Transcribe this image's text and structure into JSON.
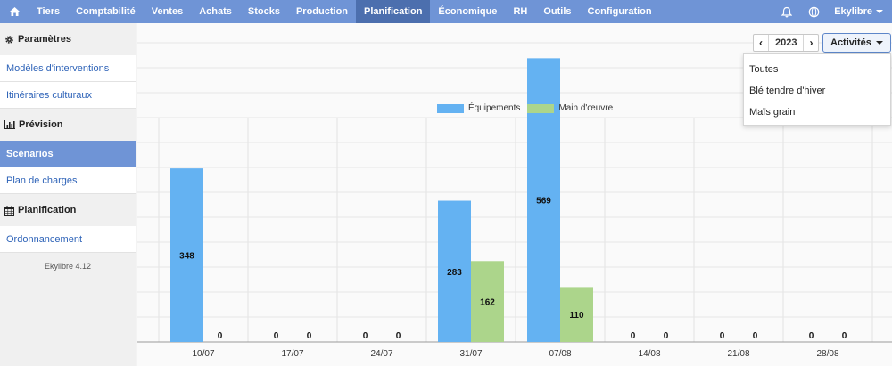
{
  "topnav": {
    "items": [
      "Tiers",
      "Comptabilité",
      "Ventes",
      "Achats",
      "Stocks",
      "Production",
      "Planification",
      "Économique",
      "RH",
      "Outils",
      "Configuration"
    ],
    "active_index": 6,
    "user": "Ekylibre"
  },
  "sidebar": {
    "sections": [
      {
        "title": "Paramètres",
        "icon": "gear-icon",
        "links": [
          "Modèles d'interventions",
          "Itinéraires culturaux"
        ]
      },
      {
        "title": "Prévision",
        "icon": "bar-chart-icon",
        "links": [
          "Scénarios",
          "Plan de charges"
        ]
      },
      {
        "title": "Planification",
        "icon": "calendar-icon",
        "links": [
          "Ordonnancement"
        ]
      }
    ],
    "active_link": "Scénarios",
    "version": "Ekylibre 4.12"
  },
  "controls": {
    "year": "2023",
    "prev_label": "‹",
    "next_label": "›",
    "activities_label": "Activités",
    "activity_options": [
      "Toutes",
      "Blé tendre d'hiver",
      "Maïs grain"
    ]
  },
  "colors": {
    "nav": "#6f94d6",
    "nav_active": "#4c6fae",
    "equipment": "#64b2f2",
    "labour": "#acd58b",
    "link": "#2e63b8"
  },
  "chart_data": {
    "type": "bar",
    "categories": [
      "10/07",
      "17/07",
      "24/07",
      "31/07",
      "07/08",
      "14/08",
      "21/08",
      "28/08"
    ],
    "series": [
      {
        "name": "Équipements",
        "values": [
          348,
          0,
          0,
          283,
          569,
          0,
          0,
          0
        ]
      },
      {
        "name": "Main d'œuvre",
        "values": [
          0,
          0,
          0,
          162,
          110,
          0,
          0,
          0
        ]
      }
    ],
    "ylim": [
      0,
      600
    ],
    "grid": true,
    "legend": "top-center"
  }
}
